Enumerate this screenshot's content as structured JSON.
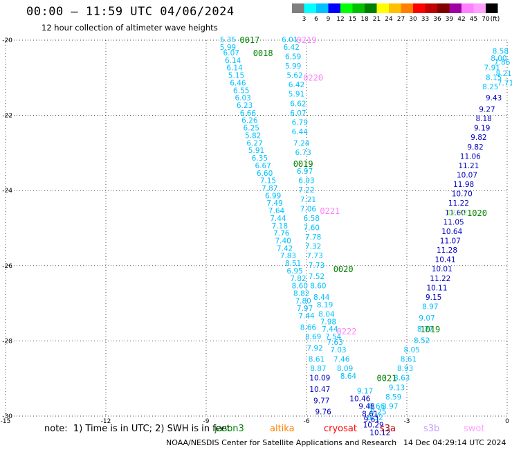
{
  "header": {
    "title": "00:00 – 11:59 UTC 04/06/2024",
    "subtitle": "12 hour collection of altimeter wave heights"
  },
  "legend": {
    "unit": "(ft)",
    "bins": [
      {
        "label": "3",
        "color": "#7f7f7f"
      },
      {
        "label": "6",
        "color": "#00ffff"
      },
      {
        "label": "9",
        "color": "#00c0ff"
      },
      {
        "label": "12",
        "color": "#0000ff"
      },
      {
        "label": "15",
        "color": "#00ff00"
      },
      {
        "label": "18",
        "color": "#00c000"
      },
      {
        "label": "21",
        "color": "#008000"
      },
      {
        "label": "24",
        "color": "#ffff00"
      },
      {
        "label": "27",
        "color": "#ffc000"
      },
      {
        "label": "30",
        "color": "#ff8000"
      },
      {
        "label": "33",
        "color": "#ff0000"
      },
      {
        "label": "36",
        "color": "#c00000"
      },
      {
        "label": "39",
        "color": "#800000"
      },
      {
        "label": "42",
        "color": "#a000a0"
      },
      {
        "label": "45",
        "color": "#ff80ff"
      },
      {
        "label": "70",
        "color": "#ffa0ff"
      },
      {
        "label": "",
        "color": "#000000"
      }
    ]
  },
  "footer": {
    "note": "note:  1) Time is in UTC; 2) SWH is in feet",
    "credit": "NOAA/NESDIS Center for Satellite Applications and Research",
    "timestamp": "14 Dec 04:29:14 UTC 2024",
    "satellites": [
      {
        "name": "jason3",
        "color": "#008000"
      },
      {
        "name": "altika",
        "color": "#ff8000"
      },
      {
        "name": "cryosat",
        "color": "#ff0000"
      },
      {
        "name": "s3a",
        "color": "#c00000"
      },
      {
        "name": "s3b",
        "color": "#c0a0ff"
      },
      {
        "name": "swot",
        "color": "#ffa0ff"
      }
    ]
  },
  "chart_data": {
    "type": "scatter",
    "xlim": [
      -15,
      0
    ],
    "ylim": [
      -30,
      -20
    ],
    "x_ticks": [
      "-15",
      "-12",
      "-9",
      "-6",
      "-3",
      "0"
    ],
    "y_ticks": [
      "-20",
      "-22",
      "-24",
      "-26",
      "-28",
      "-30"
    ],
    "grid": true,
    "pass_labels": [
      {
        "text": "0017",
        "x": -7.7,
        "y": -20.0,
        "color": "#008000"
      },
      {
        "text": "0018",
        "x": -7.3,
        "y": -20.35,
        "color": "#008000"
      },
      {
        "text": "0219",
        "x": -6.0,
        "y": -20.0,
        "color": "#ff80ff"
      },
      {
        "text": "0220",
        "x": -5.8,
        "y": -21.0,
        "color": "#ff80ff"
      },
      {
        "text": "0019",
        "x": -6.1,
        "y": -23.3,
        "color": "#008000"
      },
      {
        "text": "0221",
        "x": -5.3,
        "y": -24.55,
        "color": "#ff80ff"
      },
      {
        "text": "0020",
        "x": -4.9,
        "y": -26.1,
        "color": "#008000"
      },
      {
        "text": "0222",
        "x": -4.8,
        "y": -27.75,
        "color": "#ff80ff"
      },
      {
        "text": "0021",
        "x": -3.6,
        "y": -29.0,
        "color": "#008000"
      },
      {
        "text": "1019",
        "x": -2.3,
        "y": -27.7,
        "color": "#008000"
      },
      {
        "text": "1020",
        "x": -0.9,
        "y": -24.6,
        "color": "#008000"
      }
    ],
    "series": [
      {
        "points": [
          {
            "x": -8.35,
            "y": -20.0,
            "v": "5.35"
          },
          {
            "x": -8.35,
            "y": -20.2,
            "v": "5.99"
          },
          {
            "x": -8.25,
            "y": -20.35,
            "v": "6.07"
          },
          {
            "x": -8.2,
            "y": -20.55,
            "v": "6.14"
          },
          {
            "x": -8.15,
            "y": -20.75,
            "v": "6.14"
          },
          {
            "x": -8.1,
            "y": -20.95,
            "v": "5.15"
          },
          {
            "x": -8.05,
            "y": -21.15,
            "v": "6.46"
          },
          {
            "x": -7.95,
            "y": -21.35,
            "v": "6.55"
          },
          {
            "x": -7.9,
            "y": -21.55,
            "v": "6.03"
          },
          {
            "x": -7.85,
            "y": -21.75,
            "v": "6.23"
          },
          {
            "x": -7.75,
            "y": -21.95,
            "v": "6.66"
          },
          {
            "x": -7.7,
            "y": -22.15,
            "v": "6.26"
          },
          {
            "x": -7.65,
            "y": -22.35,
            "v": "6.25"
          },
          {
            "x": -7.6,
            "y": -22.55,
            "v": "5.82"
          },
          {
            "x": -7.55,
            "y": -22.75,
            "v": "6.27"
          },
          {
            "x": -7.5,
            "y": -22.95,
            "v": "5.91"
          },
          {
            "x": -7.4,
            "y": -23.15,
            "v": "6.35"
          },
          {
            "x": -7.3,
            "y": -23.35,
            "v": "6.67"
          },
          {
            "x": -7.25,
            "y": -23.55,
            "v": "6.60"
          },
          {
            "x": -7.15,
            "y": -23.75,
            "v": "7.15"
          },
          {
            "x": -7.1,
            "y": -23.95,
            "v": "7.87"
          },
          {
            "x": -7.0,
            "y": -24.15,
            "v": "6.99"
          },
          {
            "x": -6.95,
            "y": -24.35,
            "v": "7.49"
          },
          {
            "x": -6.9,
            "y": -24.55,
            "v": "7.64"
          },
          {
            "x": -6.85,
            "y": -24.75,
            "v": "7.44"
          },
          {
            "x": -6.8,
            "y": -24.95,
            "v": "7.18"
          },
          {
            "x": -6.75,
            "y": -25.15,
            "v": "7.76"
          },
          {
            "x": -6.7,
            "y": -25.35,
            "v": "7.40"
          },
          {
            "x": -6.65,
            "y": -25.55,
            "v": "7.42"
          },
          {
            "x": -6.55,
            "y": -25.75,
            "v": "7.83"
          },
          {
            "x": -6.4,
            "y": -25.95,
            "v": "8.51"
          },
          {
            "x": -6.35,
            "y": -26.15,
            "v": "6.95"
          },
          {
            "x": -6.25,
            "y": -26.35,
            "v": "7.82"
          },
          {
            "x": -6.2,
            "y": -26.55,
            "v": "8.60"
          },
          {
            "x": -6.15,
            "y": -26.75,
            "v": "8.82"
          },
          {
            "x": -6.1,
            "y": -26.95,
            "v": "7.80"
          },
          {
            "x": -6.05,
            "y": -27.15,
            "v": "7.97"
          },
          {
            "x": -6.0,
            "y": -27.35,
            "v": "7.44"
          },
          {
            "x": -5.95,
            "y": -27.65,
            "v": "8.66"
          },
          {
            "x": -5.8,
            "y": -27.9,
            "v": "8.69"
          },
          {
            "x": -5.75,
            "y": -28.2,
            "v": "7.92"
          },
          {
            "x": -5.7,
            "y": -28.5,
            "v": "8.61"
          },
          {
            "x": -5.65,
            "y": -28.75,
            "v": "8.87"
          }
        ],
        "color": "#00c0ff"
      },
      {
        "points": [
          {
            "x": -6.5,
            "y": -20.0,
            "v": "6.01"
          },
          {
            "x": -6.45,
            "y": -20.2,
            "v": "6.42"
          },
          {
            "x": -6.4,
            "y": -20.45,
            "v": "6.59"
          },
          {
            "x": -6.4,
            "y": -20.7,
            "v": "5.99"
          },
          {
            "x": -6.35,
            "y": -20.95,
            "v": "5.62"
          },
          {
            "x": -6.3,
            "y": -21.2,
            "v": "6.42"
          },
          {
            "x": -6.3,
            "y": -21.45,
            "v": "5.91"
          },
          {
            "x": -6.25,
            "y": -21.7,
            "v": "6.62"
          },
          {
            "x": -6.25,
            "y": -21.95,
            "v": "6.07"
          },
          {
            "x": -6.2,
            "y": -22.2,
            "v": "6.79"
          },
          {
            "x": -6.2,
            "y": -22.45,
            "v": "6.44"
          },
          {
            "x": -6.15,
            "y": -22.75,
            "v": "7.24"
          },
          {
            "x": -6.1,
            "y": -23.0,
            "v": "6.73"
          },
          {
            "x": -6.05,
            "y": -23.5,
            "v": "6.97"
          },
          {
            "x": -6.0,
            "y": -23.75,
            "v": "6.93"
          },
          {
            "x": -6.0,
            "y": -24.0,
            "v": "7.22"
          },
          {
            "x": -5.95,
            "y": -24.25,
            "v": "7.21"
          },
          {
            "x": -5.95,
            "y": -24.5,
            "v": "7.06"
          },
          {
            "x": -5.85,
            "y": -24.75,
            "v": "6.58"
          },
          {
            "x": -5.85,
            "y": -25.0,
            "v": "7.60"
          },
          {
            "x": -5.8,
            "y": -25.25,
            "v": "7.78"
          },
          {
            "x": -5.8,
            "y": -25.5,
            "v": "7.32"
          },
          {
            "x": -5.75,
            "y": -25.75,
            "v": "7.73"
          },
          {
            "x": -5.7,
            "y": -26.0,
            "v": "7.73"
          },
          {
            "x": -5.7,
            "y": -26.3,
            "v": "7.52"
          },
          {
            "x": -5.65,
            "y": -26.55,
            "v": "8.60"
          },
          {
            "x": -5.55,
            "y": -26.85,
            "v": "8.44"
          },
          {
            "x": -5.45,
            "y": -27.05,
            "v": "8.19"
          },
          {
            "x": -5.4,
            "y": -27.3,
            "v": "8.04"
          },
          {
            "x": -5.35,
            "y": -27.5,
            "v": "7.98"
          },
          {
            "x": -5.3,
            "y": -27.7,
            "v": "7.44"
          },
          {
            "x": -5.2,
            "y": -27.9,
            "v": "7.54"
          },
          {
            "x": -5.15,
            "y": -28.05,
            "v": "7.63"
          },
          {
            "x": -5.05,
            "y": -28.25,
            "v": "7.03"
          },
          {
            "x": -4.95,
            "y": -28.5,
            "v": "7.46"
          },
          {
            "x": -4.85,
            "y": -28.75,
            "v": "8.09"
          },
          {
            "x": -4.75,
            "y": -28.95,
            "v": "8.64"
          },
          {
            "x": -4.25,
            "y": -29.35,
            "v": "9.17"
          },
          {
            "x": -3.9,
            "y": -29.75,
            "v": "8.66"
          },
          {
            "x": -3.85,
            "y": -29.9,
            "v": "9.25"
          },
          {
            "x": -3.95,
            "y": -30.05,
            "v": "8.32"
          }
        ],
        "color": "#00c0ff"
      },
      {
        "points": [
          {
            "x": -5.6,
            "y": -29.0,
            "v": "10.09"
          },
          {
            "x": -5.6,
            "y": -29.3,
            "v": "10.47"
          },
          {
            "x": -5.55,
            "y": -29.6,
            "v": "9.77"
          },
          {
            "x": -5.5,
            "y": -29.9,
            "v": "9.76"
          },
          {
            "x": -4.4,
            "y": -29.55,
            "v": "10.46"
          },
          {
            "x": -4.2,
            "y": -29.75,
            "v": "9.48"
          },
          {
            "x": -4.1,
            "y": -29.95,
            "v": "8.61"
          },
          {
            "x": -4.05,
            "y": -30.1,
            "v": "9.61"
          },
          {
            "x": -4.0,
            "y": -30.25,
            "v": "10.29"
          },
          {
            "x": -3.8,
            "y": -30.45,
            "v": "10.12"
          }
        ],
        "color": "#0000c0"
      },
      {
        "points": [
          {
            "x": -3.5,
            "y": -29.75,
            "v": "8.97"
          },
          {
            "x": -3.4,
            "y": -29.5,
            "v": "8.59"
          },
          {
            "x": -3.3,
            "y": -29.25,
            "v": "9.13"
          },
          {
            "x": -3.15,
            "y": -29.0,
            "v": "8.63"
          },
          {
            "x": -3.05,
            "y": -28.75,
            "v": "8.93"
          },
          {
            "x": -2.95,
            "y": -28.5,
            "v": "8.61"
          },
          {
            "x": -2.85,
            "y": -28.25,
            "v": "8.05"
          },
          {
            "x": -2.55,
            "y": -28.0,
            "v": "8.52"
          },
          {
            "x": -2.45,
            "y": -27.7,
            "v": "8.77"
          },
          {
            "x": -2.4,
            "y": -27.4,
            "v": "9.07"
          },
          {
            "x": -2.3,
            "y": -27.1,
            "v": "8.97"
          }
        ],
        "color": "#00c0ff"
      },
      {
        "points": [
          {
            "x": -2.2,
            "y": -26.85,
            "v": "9.15"
          },
          {
            "x": -2.1,
            "y": -26.6,
            "v": "10.11"
          },
          {
            "x": -2.0,
            "y": -26.35,
            "v": "11.22"
          },
          {
            "x": -1.95,
            "y": -26.1,
            "v": "10.01"
          },
          {
            "x": -1.85,
            "y": -25.85,
            "v": "10.41"
          },
          {
            "x": -1.8,
            "y": -25.6,
            "v": "11.28"
          },
          {
            "x": -1.7,
            "y": -25.35,
            "v": "11.07"
          },
          {
            "x": -1.65,
            "y": -25.1,
            "v": "10.64"
          },
          {
            "x": -1.6,
            "y": -24.85,
            "v": "11.05"
          },
          {
            "x": -1.55,
            "y": -24.6,
            "v": "11.60"
          },
          {
            "x": -1.45,
            "y": -24.35,
            "v": "11.22"
          },
          {
            "x": -1.35,
            "y": -24.1,
            "v": "10.70"
          },
          {
            "x": -1.3,
            "y": -23.85,
            "v": "11.98"
          },
          {
            "x": -1.2,
            "y": -23.6,
            "v": "10.07"
          },
          {
            "x": -1.15,
            "y": -23.35,
            "v": "11.21"
          },
          {
            "x": -1.1,
            "y": -23.1,
            "v": "11.06"
          },
          {
            "x": -0.95,
            "y": -22.85,
            "v": "9.82"
          },
          {
            "x": -0.85,
            "y": -22.6,
            "v": "9.82"
          },
          {
            "x": -0.75,
            "y": -22.35,
            "v": "9.19"
          },
          {
            "x": -0.7,
            "y": -22.1,
            "v": "8.18"
          },
          {
            "x": -0.6,
            "y": -21.85,
            "v": "9.27"
          },
          {
            "x": -0.4,
            "y": -21.55,
            "v": "9.43"
          }
        ],
        "color": "#0000c0"
      },
      {
        "points": [
          {
            "x": -1.5,
            "y": -24.6,
            "v": "12.72"
          }
        ],
        "color": "#80ff40"
      },
      {
        "points": [
          {
            "x": -0.5,
            "y": -21.25,
            "v": "8.25"
          },
          {
            "x": -0.4,
            "y": -21.0,
            "v": "8.15"
          },
          {
            "x": -0.45,
            "y": -20.75,
            "v": "7.91"
          },
          {
            "x": -0.25,
            "y": -20.5,
            "v": "8.00"
          },
          {
            "x": -0.2,
            "y": -20.3,
            "v": "8.58"
          },
          {
            "x": -0.15,
            "y": -20.6,
            "v": "7.86"
          },
          {
            "x": -0.1,
            "y": -20.9,
            "v": "8.21"
          },
          {
            "x": -0.05,
            "y": -21.15,
            "v": "7.71"
          }
        ],
        "color": "#00c0ff"
      }
    ]
  }
}
